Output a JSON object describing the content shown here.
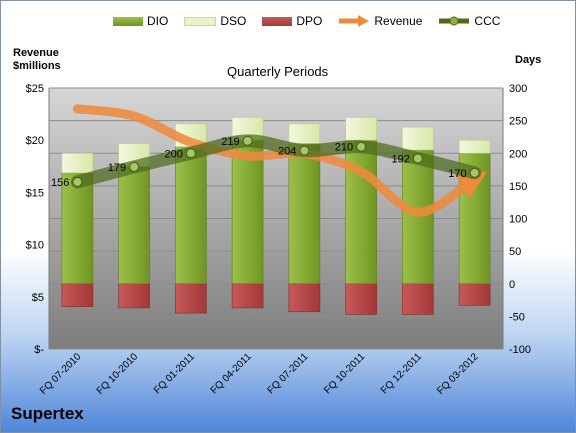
{
  "chart_data": {
    "type": "bar",
    "title": "Quarterly Periods",
    "company": "Supertex",
    "left_axis_label": [
      "Revenue",
      "$millions"
    ],
    "right_axis_label": "Days",
    "left_ticks": [
      "$25",
      "$20",
      "$15",
      "$10",
      "$5",
      "$-"
    ],
    "right_ticks": [
      "300",
      "250",
      "200",
      "150",
      "100",
      "50",
      "0",
      "-50",
      "-100"
    ],
    "ylim_left": [
      0,
      25
    ],
    "ylim_right": [
      -100,
      300
    ],
    "categories": [
      "FQ 07-2010",
      "FQ 10-2010",
      "FQ 01-2011",
      "FQ 04-2011",
      "FQ 07-2011",
      "FQ 10-2011",
      "FQ 12-2011",
      "FQ 03-2012"
    ],
    "series": [
      {
        "name": "DIO",
        "axis": "right",
        "values": [
          170,
          180,
          210,
          220,
          215,
          220,
          205,
          200
        ],
        "color": "#8db33c"
      },
      {
        "name": "DSO",
        "axis": "right",
        "values": [
          30,
          35,
          35,
          35,
          30,
          35,
          35,
          20
        ],
        "color": "#e8f2c8"
      },
      {
        "name": "DPO",
        "axis": "right",
        "values": [
          -35,
          -37,
          -45,
          -37,
          -43,
          -47,
          -47,
          -33
        ],
        "color": "#b84848"
      },
      {
        "name": "Revenue",
        "axis": "left",
        "values": [
          23.0,
          22.3,
          19.8,
          18.5,
          18.7,
          17.0,
          13.1,
          16.3
        ],
        "color": "#ee8a3d"
      },
      {
        "name": "CCC",
        "axis": "right",
        "values": [
          156,
          179,
          200,
          219,
          204,
          210,
          192,
          170
        ],
        "color": "#4e6b1e"
      }
    ],
    "ccc_labels": [
      "156",
      "179",
      "200",
      "219",
      "204",
      "210",
      "192",
      "170"
    ],
    "grid": true,
    "legend_position": "top"
  }
}
